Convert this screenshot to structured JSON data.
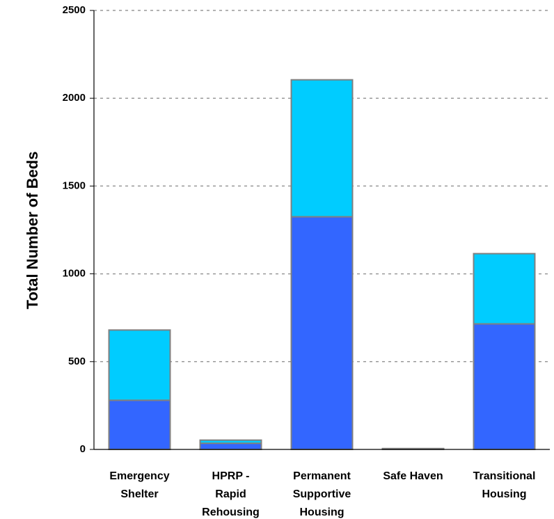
{
  "chart_data": {
    "type": "bar",
    "stacked": true,
    "title": "",
    "xlabel": "",
    "ylabel": "Total Number of Beds",
    "ylim": [
      0,
      2500
    ],
    "yticks": [
      0,
      500,
      1000,
      1500,
      2000,
      2500
    ],
    "grid": "horizontal-dashed",
    "categories": [
      [
        "Emergency",
        "Shelter"
      ],
      [
        "HPRP -",
        "Rapid",
        "Rehousing"
      ],
      [
        "Permanent",
        "Supportive",
        "Housing"
      ],
      [
        "Safe Haven"
      ],
      [
        "Transitional",
        "Housing"
      ]
    ],
    "series": [
      {
        "color": "#3366ff",
        "values": [
          280,
          35,
          1325,
          4,
          715
        ]
      },
      {
        "color": "#00ccff",
        "values": [
          400,
          18,
          780,
          1,
          400
        ]
      }
    ]
  }
}
